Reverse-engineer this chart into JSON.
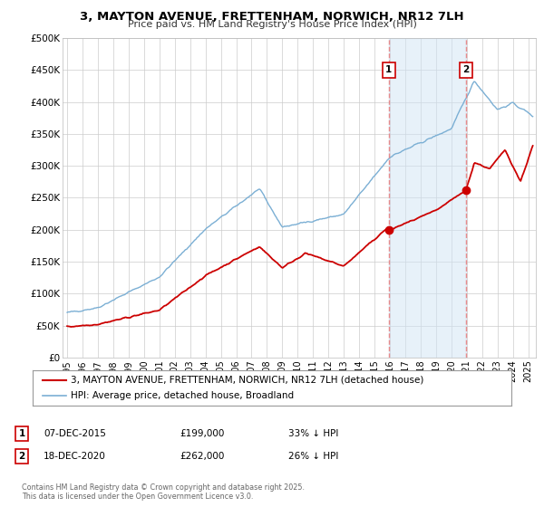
{
  "title": "3, MAYTON AVENUE, FRETTENHAM, NORWICH, NR12 7LH",
  "subtitle": "Price paid vs. HM Land Registry's House Price Index (HPI)",
  "background_color": "#ffffff",
  "grid_color": "#cccccc",
  "hpi_color": "#7bafd4",
  "hpi_fill_color": "#d0e4f5",
  "price_color": "#cc0000",
  "dashed_color": "#e88080",
  "ylim": [
    0,
    500000
  ],
  "xlim_start": 1994.7,
  "xlim_end": 2025.5,
  "sale1_year": 2015.93,
  "sale1_price": 199000,
  "sale2_year": 2020.96,
  "sale2_price": 262000,
  "legend_label_property": "3, MAYTON AVENUE, FRETTENHAM, NORWICH, NR12 7LH (detached house)",
  "legend_label_hpi": "HPI: Average price, detached house, Broadland",
  "annotation1_label": "07-DEC-2015",
  "annotation1_value": "£199,000",
  "annotation1_pct": "33% ↓ HPI",
  "annotation2_label": "18-DEC-2020",
  "annotation2_value": "£262,000",
  "annotation2_pct": "26% ↓ HPI",
  "footer": "Contains HM Land Registry data © Crown copyright and database right 2025.\nThis data is licensed under the Open Government Licence v3.0.",
  "yticks": [
    0,
    50000,
    100000,
    150000,
    200000,
    250000,
    300000,
    350000,
    400000,
    450000,
    500000
  ],
  "ytick_labels": [
    "£0",
    "£50K",
    "£100K",
    "£150K",
    "£200K",
    "£250K",
    "£300K",
    "£350K",
    "£400K",
    "£450K",
    "£500K"
  ]
}
